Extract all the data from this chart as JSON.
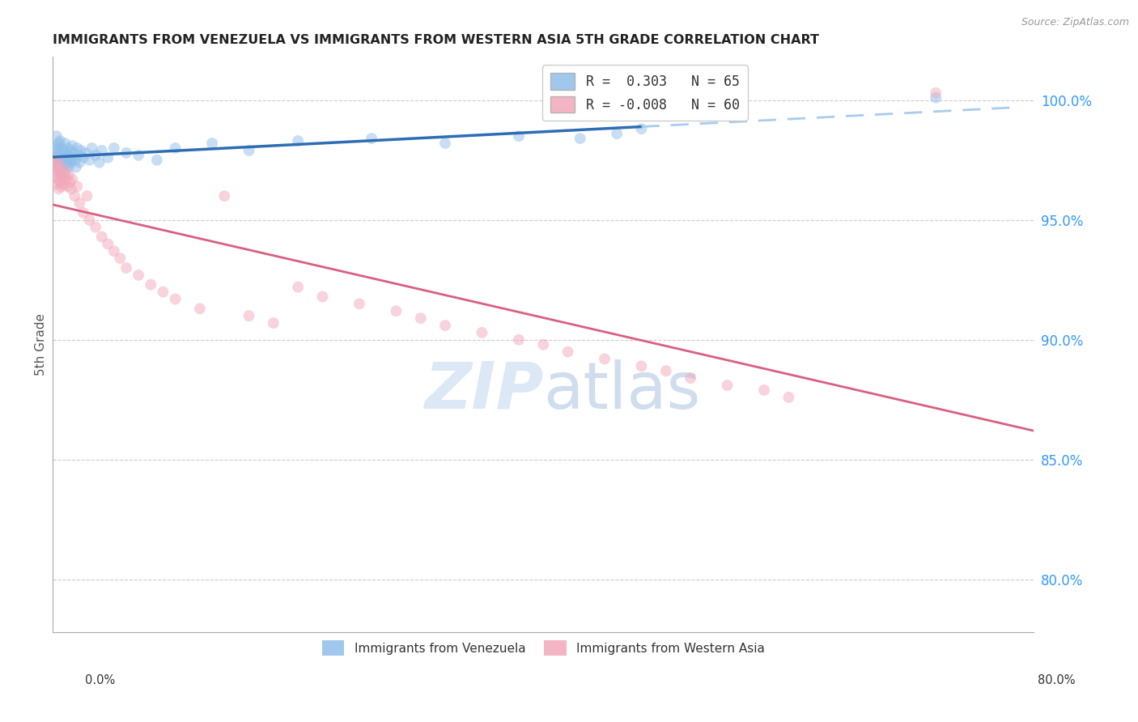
{
  "title": "IMMIGRANTS FROM VENEZUELA VS IMMIGRANTS FROM WESTERN ASIA 5TH GRADE CORRELATION CHART",
  "source": "Source: ZipAtlas.com",
  "ylabel": "5th Grade",
  "ytick_labels": [
    "80.0%",
    "85.0%",
    "90.0%",
    "95.0%",
    "100.0%"
  ],
  "ytick_values": [
    0.8,
    0.85,
    0.9,
    0.95,
    1.0
  ],
  "xlim": [
    0.0,
    0.8
  ],
  "ylim": [
    0.778,
    1.018
  ],
  "color_venezuela": "#90BFEA",
  "color_western_asia": "#F2A8BA",
  "trendline_venezuela_color": "#2E6DB4",
  "trendline_western_asia_color": "#D96080",
  "trendline_dashed_color": "#A8CCEE",
  "background_color": "#FFFFFF",
  "marker_size": 100,
  "marker_alpha": 0.5,
  "ven_x": [
    0.001,
    0.002,
    0.002,
    0.003,
    0.003,
    0.003,
    0.004,
    0.004,
    0.004,
    0.005,
    0.005,
    0.005,
    0.006,
    0.006,
    0.007,
    0.007,
    0.007,
    0.008,
    0.008,
    0.009,
    0.009,
    0.01,
    0.01,
    0.01,
    0.011,
    0.011,
    0.012,
    0.012,
    0.013,
    0.013,
    0.014,
    0.015,
    0.015,
    0.016,
    0.016,
    0.017,
    0.018,
    0.019,
    0.02,
    0.021,
    0.022,
    0.023,
    0.025,
    0.027,
    0.03,
    0.032,
    0.035,
    0.038,
    0.04,
    0.045,
    0.05,
    0.06,
    0.07,
    0.085,
    0.1,
    0.13,
    0.16,
    0.2,
    0.26,
    0.32,
    0.38,
    0.43,
    0.46,
    0.48,
    0.72
  ],
  "ven_y": [
    0.974,
    0.98,
    0.976,
    0.979,
    0.973,
    0.985,
    0.975,
    0.981,
    0.977,
    0.978,
    0.982,
    0.976,
    0.983,
    0.971,
    0.98,
    0.975,
    0.968,
    0.977,
    0.972,
    0.979,
    0.976,
    0.982,
    0.974,
    0.97,
    0.978,
    0.975,
    0.98,
    0.973,
    0.977,
    0.972,
    0.975,
    0.979,
    0.974,
    0.981,
    0.976,
    0.978,
    0.975,
    0.972,
    0.98,
    0.977,
    0.974,
    0.979,
    0.976,
    0.978,
    0.975,
    0.98,
    0.977,
    0.974,
    0.979,
    0.976,
    0.98,
    0.978,
    0.977,
    0.975,
    0.98,
    0.982,
    0.979,
    0.983,
    0.984,
    0.982,
    0.985,
    0.984,
    0.986,
    0.988,
    1.001
  ],
  "was_x": [
    0.001,
    0.002,
    0.002,
    0.003,
    0.003,
    0.004,
    0.004,
    0.005,
    0.005,
    0.006,
    0.006,
    0.007,
    0.007,
    0.008,
    0.009,
    0.01,
    0.011,
    0.012,
    0.013,
    0.014,
    0.015,
    0.016,
    0.018,
    0.02,
    0.022,
    0.025,
    0.028,
    0.03,
    0.035,
    0.04,
    0.045,
    0.05,
    0.055,
    0.06,
    0.07,
    0.08,
    0.09,
    0.1,
    0.12,
    0.14,
    0.16,
    0.18,
    0.2,
    0.22,
    0.25,
    0.28,
    0.3,
    0.32,
    0.35,
    0.38,
    0.4,
    0.42,
    0.45,
    0.48,
    0.5,
    0.52,
    0.55,
    0.58,
    0.6,
    0.72
  ],
  "was_y": [
    0.971,
    0.968,
    0.975,
    0.965,
    0.972,
    0.967,
    0.974,
    0.963,
    0.97,
    0.966,
    0.969,
    0.964,
    0.972,
    0.968,
    0.965,
    0.97,
    0.967,
    0.964,
    0.969,
    0.966,
    0.963,
    0.967,
    0.96,
    0.964,
    0.957,
    0.953,
    0.96,
    0.95,
    0.947,
    0.943,
    0.94,
    0.937,
    0.934,
    0.93,
    0.927,
    0.923,
    0.92,
    0.917,
    0.913,
    0.96,
    0.91,
    0.907,
    0.922,
    0.918,
    0.915,
    0.912,
    0.909,
    0.906,
    0.903,
    0.9,
    0.898,
    0.895,
    0.892,
    0.889,
    0.887,
    0.884,
    0.881,
    0.879,
    0.876,
    1.003
  ]
}
